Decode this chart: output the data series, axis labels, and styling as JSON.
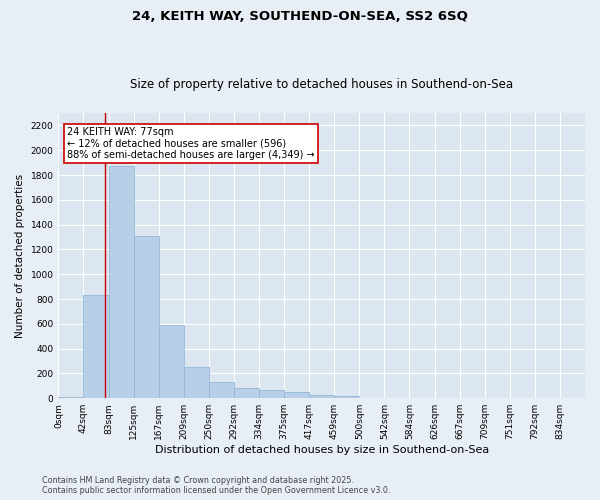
{
  "title": "24, KEITH WAY, SOUTHEND-ON-SEA, SS2 6SQ",
  "subtitle": "Size of property relative to detached houses in Southend-on-Sea",
  "xlabel": "Distribution of detached houses by size in Southend-on-Sea",
  "ylabel": "Number of detached properties",
  "bin_labels": [
    "0sqm",
    "42sqm",
    "83sqm",
    "125sqm",
    "167sqm",
    "209sqm",
    "250sqm",
    "292sqm",
    "334sqm",
    "375sqm",
    "417sqm",
    "459sqm",
    "500sqm",
    "542sqm",
    "584sqm",
    "626sqm",
    "667sqm",
    "709sqm",
    "751sqm",
    "792sqm",
    "834sqm"
  ],
  "bar_values": [
    12,
    830,
    1870,
    1310,
    590,
    250,
    130,
    80,
    70,
    50,
    25,
    20,
    3,
    0,
    0,
    4,
    0,
    0,
    0,
    0,
    0
  ],
  "bar_color": "#b8cfe8",
  "bar_edge_color": "#8aafd4",
  "vline_x": 1.85,
  "vline_color": "#cc0000",
  "annotation_text": "24 KEITH WAY: 77sqm\n← 12% of detached houses are smaller (596)\n88% of semi-detached houses are larger (4,349) →",
  "annotation_box_color": "#cc0000",
  "annotation_fill": "#ffffff",
  "ylim": [
    0,
    2300
  ],
  "yticks": [
    0,
    200,
    400,
    600,
    800,
    1000,
    1200,
    1400,
    1600,
    1800,
    2000,
    2200
  ],
  "bg_color": "#e8eef5",
  "plot_bg_color": "#dce6f0",
  "grid_color": "#ffffff",
  "footnote": "Contains HM Land Registry data © Crown copyright and database right 2025.\nContains public sector information licensed under the Open Government Licence v3.0.",
  "title_fontsize": 9.5,
  "subtitle_fontsize": 8.5,
  "xlabel_fontsize": 8,
  "ylabel_fontsize": 7.5,
  "tick_fontsize": 6.5,
  "footnote_fontsize": 5.8,
  "ann_fontsize": 7.0
}
